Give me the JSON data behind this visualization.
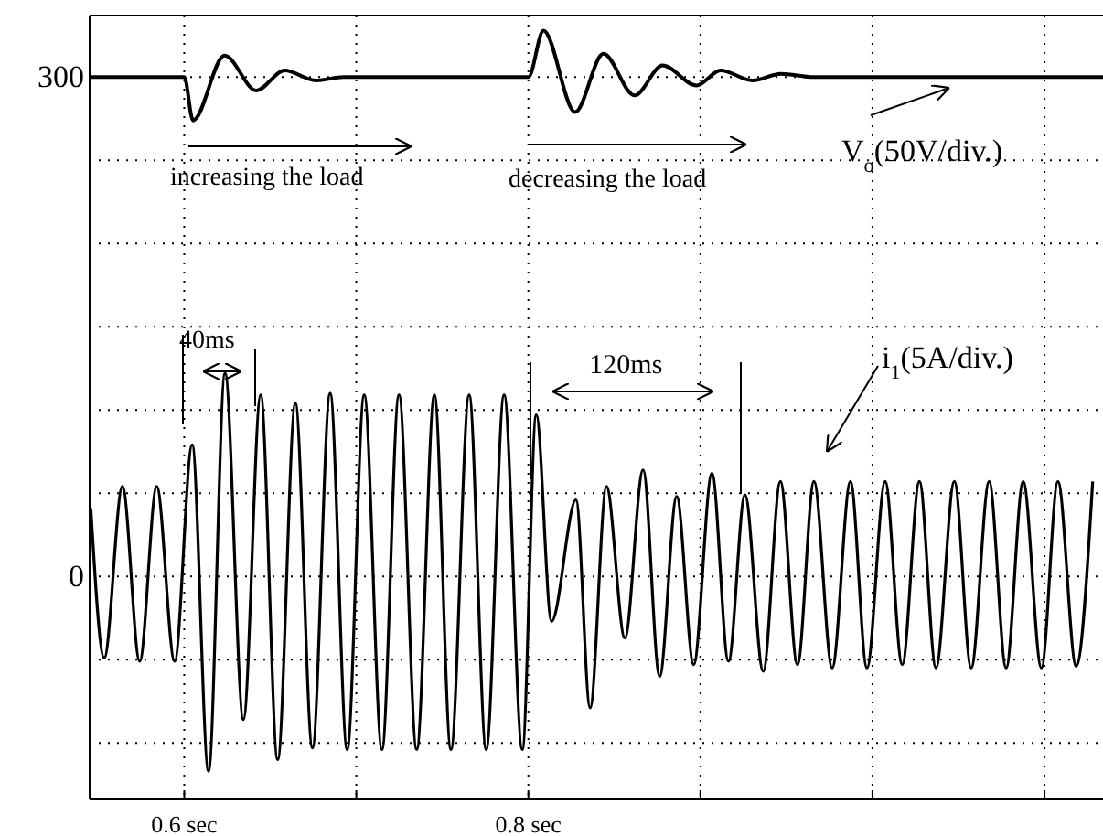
{
  "chart_data": {
    "type": "line",
    "xlim": [
      0.545,
      1.134
    ],
    "xticks": [
      {
        "value": 0.6,
        "label": "0.6 sec"
      },
      {
        "value": 0.7,
        "label": null
      },
      {
        "value": 0.8,
        "label": "0.8 sec"
      },
      {
        "value": 0.9,
        "label": null
      },
      {
        "value": 1.0,
        "label": null
      },
      {
        "value": 1.1,
        "label": null
      }
    ],
    "ylim": [
      -134,
      337
    ],
    "yticks": [
      {
        "value": -100,
        "label": null
      },
      {
        "value": -50,
        "label": null
      },
      0,
      {
        "value": 50,
        "label": null
      },
      {
        "value": 100,
        "label": null
      },
      {
        "value": 150,
        "label": null
      },
      {
        "value": 200,
        "label": null
      },
      {
        "value": 250,
        "label": null
      },
      300
    ],
    "grid": true,
    "line_style": "solid",
    "marker": "none",
    "series": [
      {
        "name": "V$_{o}$(50V/div.)",
        "color": "#000000",
        "x": [
          0.545,
          0.6,
          0.6051,
          0.6234,
          0.6419,
          0.6583,
          0.6766,
          0.6926,
          0.8,
          0.8088,
          0.8272,
          0.8436,
          0.8617,
          0.878,
          0.8977,
          0.9117,
          0.9303,
          0.9468,
          0.966,
          1.134
        ],
        "values": [
          300,
          300,
          274,
          313,
          292,
          304,
          298,
          300,
          300,
          328,
          279,
          314,
          289,
          307,
          295,
          304,
          298,
          302,
          300,
          300
        ]
      },
      {
        "name": "i$_{1}$(5A/div.)",
        "color": "#000000",
        "x": [
          0.5457,
          0.5535,
          0.5641,
          0.5741,
          0.584,
          0.5944,
          0.6046,
          0.6141,
          0.6237,
          0.6344,
          0.6444,
          0.6543,
          0.6646,
          0.6745,
          0.6848,
          0.6947,
          0.7046,
          0.7149,
          0.7248,
          0.7351,
          0.7454,
          0.755,
          0.7656,
          0.7755,
          0.7859,
          0.7965,
          0.8046,
          0.8135,
          0.8277,
          0.8359,
          0.8454,
          0.8561,
          0.8667,
          0.8763,
          0.8862,
          0.8961,
          0.9067,
          0.9163,
          0.9259,
          0.9365,
          0.9465,
          0.9564,
          0.966,
          0.9766,
          0.9872,
          0.9968,
          1.0074,
          1.0173,
          1.0273,
          1.0369,
          1.0476,
          1.0574,
          1.0678,
          1.0777,
          1.0876,
          1.0982,
          1.1078,
          1.1184,
          1.128
        ],
        "values": [
          41,
          -49,
          54,
          -51,
          54,
          -51,
          79,
          -117,
          122,
          -86,
          109,
          -110,
          104,
          -103,
          110,
          -104,
          109,
          -104,
          109,
          -104,
          109,
          -104,
          109,
          -104,
          109,
          -104,
          97,
          -27,
          46,
          -79,
          54,
          -37,
          64,
          -60,
          48,
          -53,
          62,
          -51,
          49,
          -57,
          57,
          -53,
          57,
          -55,
          57,
          -55,
          57,
          -53,
          57,
          -55,
          57,
          -55,
          57,
          -55,
          57,
          -55,
          57,
          -54,
          57
        ]
      }
    ],
    "annotations": [
      "increasing the load",
      "decreasing the load",
      {
        "text": "40ms",
        "x": 0.6237,
        "y": 122
      },
      {
        "text": "120ms",
        "x": 0.8046,
        "y": 97
      }
    ]
  }
}
